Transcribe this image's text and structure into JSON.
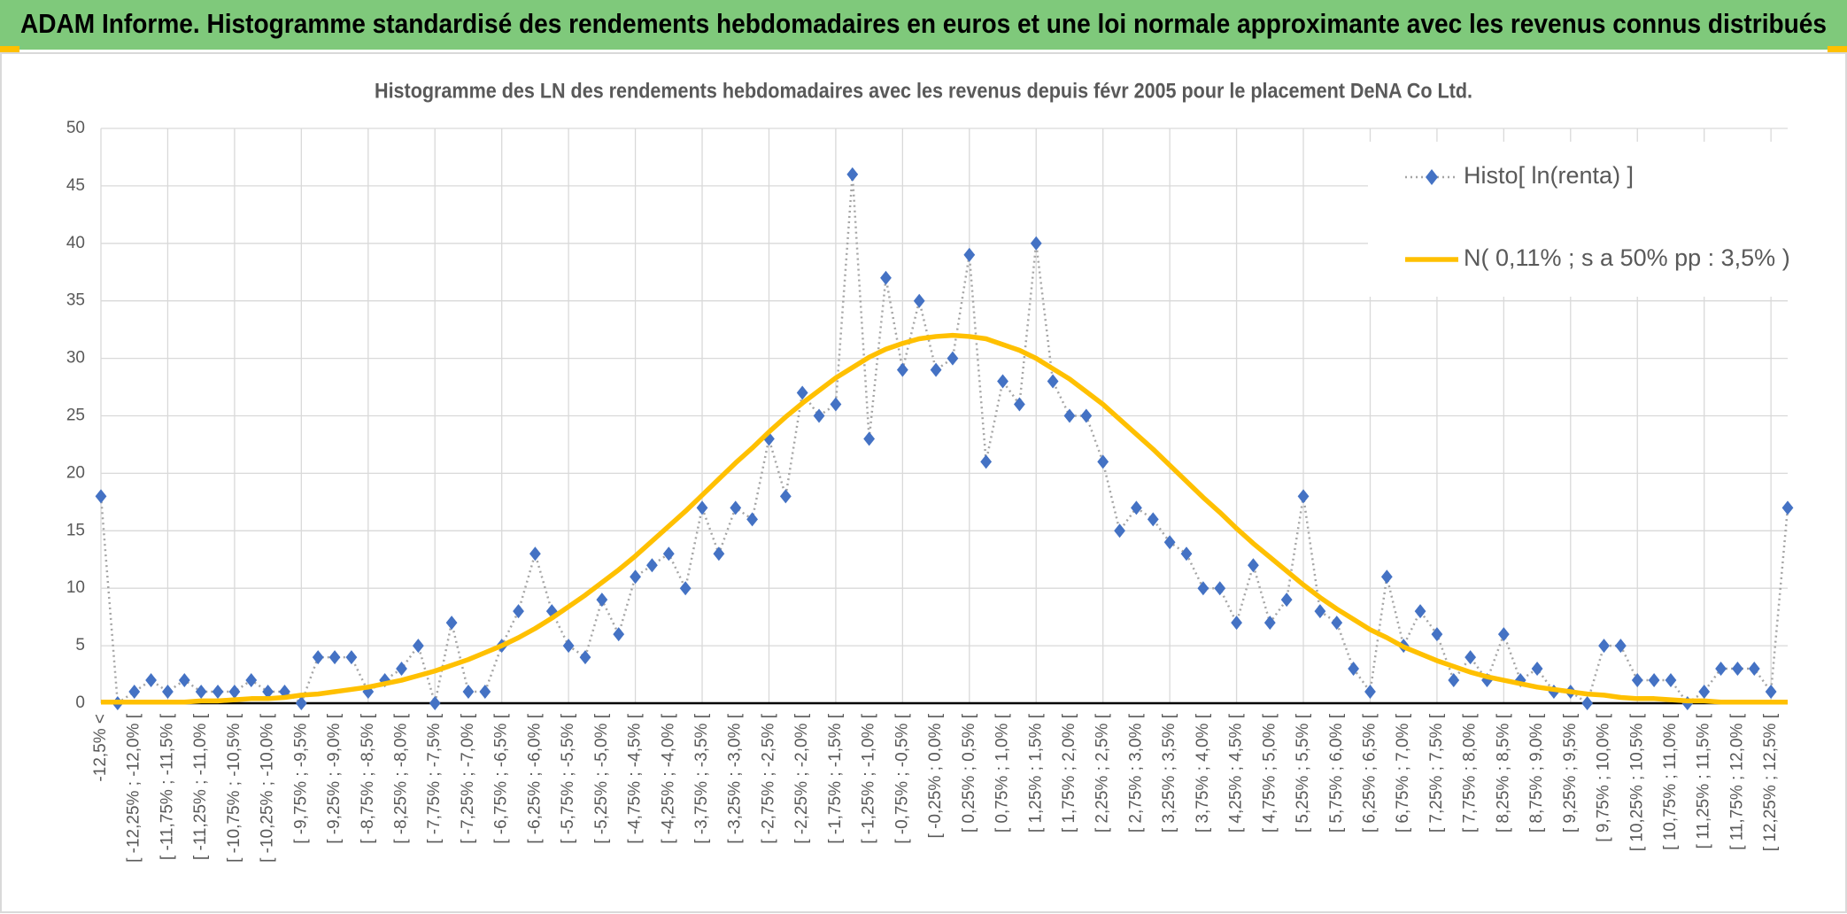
{
  "header": {
    "title": "ADAM Informe. Histogramme standardisé des rendements hebdomadaires en euros et une loi normale approximante avec les revenus connus distribués"
  },
  "chart_data": {
    "type": "line",
    "title": "Histogramme des LN des rendements hebdomadaires avec les revenus depuis févr 2005 pour le placement DeNA Co Ltd.",
    "categories": [
      "-12,5% <",
      null,
      "[ -12,25% ; -12,0% [",
      null,
      "[ -11,75% ; -11,5% [",
      null,
      "[ -11,25% ; -11,0% [",
      null,
      "[ -10,75% ; -10,5% [",
      null,
      "[ -10,25% ; -10,0% [",
      null,
      "[ -9,75% ; -9,5% [",
      null,
      "[ -9,25% ; -9,0% [",
      null,
      "[ -8,75% ; -8,5% [",
      null,
      "[ -8,25% ; -8,0% [",
      null,
      "[ -7,75% ; -7,5% [",
      null,
      "[ -7,25% ; -7,0% [",
      null,
      "[ -6,75% ; -6,5% [",
      null,
      "[ -6,25% ; -6,0% [",
      null,
      "[ -5,75% ; -5,5% [",
      null,
      "[ -5,25% ; -5,0% [",
      null,
      "[ -4,75% ; -4,5% [",
      null,
      "[ -4,25% ; -4,0% [",
      null,
      "[ -3,75% ; -3,5% [",
      null,
      "[ -3,25% ; -3,0% [",
      null,
      "[ -2,75% ; -2,5% [",
      null,
      "[ -2,25% ; -2,0% [",
      null,
      "[ -1,75% ; -1,5% [",
      null,
      "[ -1,25% ; -1,0% [",
      null,
      "[ -0,75% ; -0,5% [",
      null,
      "[ -0,25% ; 0,0% [",
      null,
      "[ 0,25% ; 0,5% [",
      null,
      "[ 0,75% ; 1,0% [",
      null,
      "[ 1,25% ; 1,5% [",
      null,
      "[ 1,75% ; 2,0% [",
      null,
      "[ 2,25% ; 2,5% [",
      null,
      "[ 2,75% ; 3,0% [",
      null,
      "[ 3,25% ; 3,5% [",
      null,
      "[ 3,75% ; 4,0% [",
      null,
      "[ 4,25% ; 4,5% [",
      null,
      "[ 4,75% ; 5,0% [",
      null,
      "[ 5,25% ; 5,5% [",
      null,
      "[ 5,75% ; 6,0% [",
      null,
      "[ 6,25% ; 6,5% [",
      null,
      "[ 6,75% ; 7,0% [",
      null,
      "[ 7,25% ; 7,5% [",
      null,
      "[ 7,75% ; 8,0% [",
      null,
      "[ 8,25% ; 8,5% [",
      null,
      "[ 8,75% ; 9,0% [",
      null,
      "[ 9,25% ; 9,5% [",
      null,
      "[ 9,75% ; 10,0% [",
      null,
      "[ 10,25% ; 10,5% [",
      null,
      "[ 10,75% ; 11,0% [",
      null,
      "[ 11,25% ; 11,5% [",
      null,
      "[ 11,75% ; 12,0% [",
      null,
      "[ 12,25% ; 12,5% [",
      null
    ],
    "series": [
      {
        "name": "Histo[ ln(renta) ]",
        "color": "#4472c4",
        "line_color": "#a5a5a5",
        "marker": "diamond",
        "values": [
          18,
          0,
          1,
          2,
          1,
          2,
          1,
          1,
          1,
          2,
          1,
          1,
          0,
          4,
          4,
          4,
          1,
          2,
          3,
          5,
          0,
          7,
          1,
          1,
          5,
          8,
          13,
          8,
          5,
          4,
          9,
          6,
          11,
          12,
          13,
          10,
          17,
          13,
          17,
          16,
          23,
          18,
          27,
          25,
          26,
          46,
          23,
          37,
          29,
          35,
          29,
          30,
          39,
          21,
          28,
          26,
          40,
          28,
          25,
          25,
          21,
          15,
          17,
          16,
          14,
          13,
          10,
          10,
          7,
          12,
          7,
          9,
          18,
          8,
          7,
          3,
          1,
          11,
          5,
          8,
          6,
          2,
          4,
          2,
          6,
          2,
          3,
          1,
          1,
          0,
          5,
          5,
          2,
          2,
          2,
          0,
          1,
          3,
          3,
          3,
          1,
          17
        ]
      },
      {
        "name": "N( 0,11% ; s a 50% pp : 3,5% )",
        "color": "#ffc000",
        "marker": "none",
        "values": [
          0.1,
          0.1,
          0.1,
          0.1,
          0.1,
          0.1,
          0.2,
          0.2,
          0.3,
          0.4,
          0.4,
          0.5,
          0.7,
          0.8,
          1.0,
          1.2,
          1.4,
          1.7,
          2.0,
          2.4,
          2.8,
          3.3,
          3.8,
          4.4,
          5.0,
          5.7,
          6.5,
          7.4,
          8.4,
          9.4,
          10.5,
          11.6,
          12.8,
          14.1,
          15.4,
          16.7,
          18.1,
          19.5,
          20.9,
          22.2,
          23.6,
          24.9,
          26.1,
          27.2,
          28.3,
          29.2,
          30.1,
          30.8,
          31.3,
          31.7,
          31.9,
          32.0,
          31.9,
          31.7,
          31.2,
          30.7,
          30.0,
          29.1,
          28.2,
          27.1,
          26.0,
          24.7,
          23.4,
          22.1,
          20.7,
          19.3,
          17.9,
          16.6,
          15.2,
          13.9,
          12.7,
          11.5,
          10.3,
          9.2,
          8.2,
          7.3,
          6.4,
          5.7,
          4.9,
          4.3,
          3.7,
          3.2,
          2.7,
          2.3,
          2.0,
          1.7,
          1.4,
          1.2,
          1.0,
          0.8,
          0.7,
          0.5,
          0.4,
          0.4,
          0.3,
          0.2,
          0.2,
          0.1,
          0.1,
          0.1,
          0.1,
          0.1
        ]
      }
    ],
    "ylim": [
      0,
      50
    ],
    "yticks": [
      0,
      5,
      10,
      15,
      20,
      25,
      30,
      35,
      40,
      45,
      50
    ],
    "grid": true,
    "legend": "top-right"
  }
}
